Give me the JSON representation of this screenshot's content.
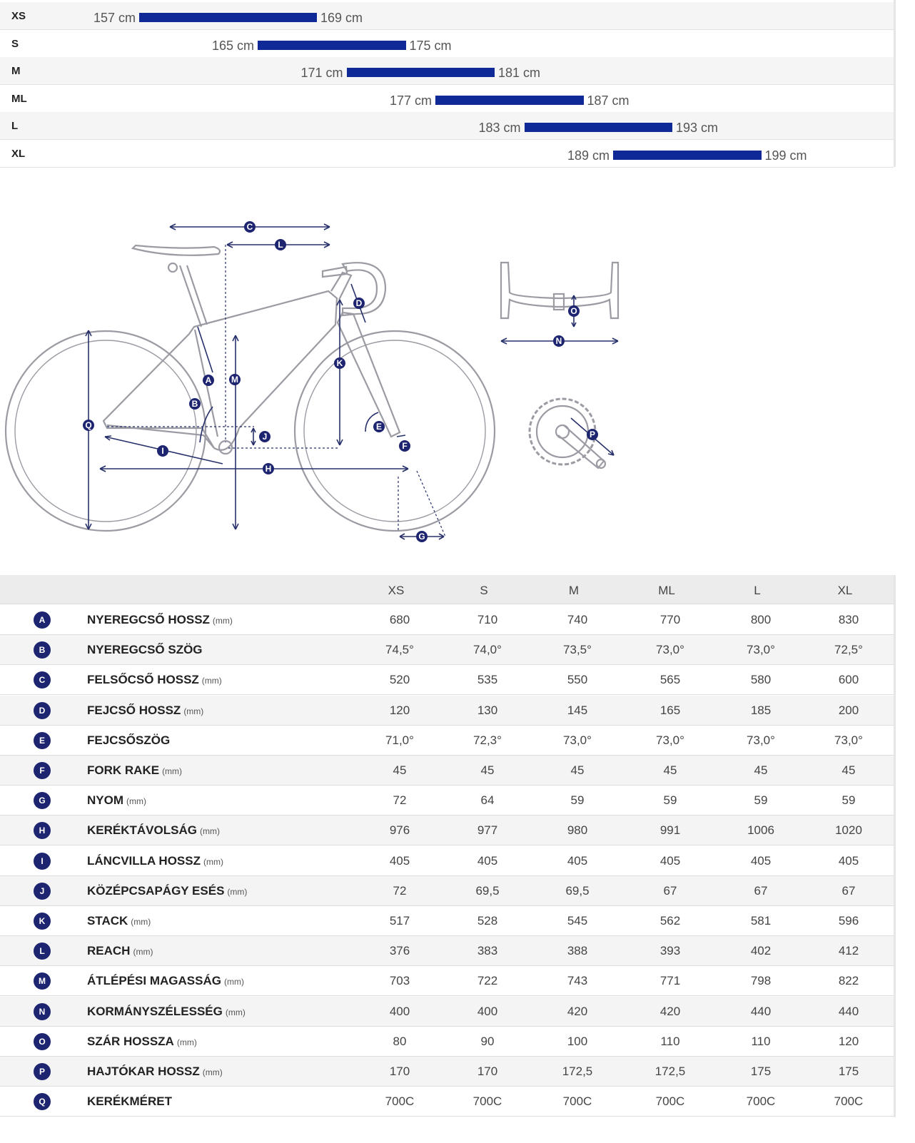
{
  "size_ranges": [
    {
      "size": "XS",
      "min": "157 cm",
      "max": "169 cm"
    },
    {
      "size": "S",
      "min": "165 cm",
      "max": "175 cm"
    },
    {
      "size": "M",
      "min": "171 cm",
      "max": "181 cm"
    },
    {
      "size": "ML",
      "min": "177 cm",
      "max": "187 cm"
    },
    {
      "size": "L",
      "min": "183 cm",
      "max": "193 cm"
    },
    {
      "size": "XL",
      "min": "189 cm",
      "max": "199 cm"
    }
  ],
  "diagram_letters": [
    "A",
    "B",
    "C",
    "D",
    "E",
    "F",
    "G",
    "H",
    "I",
    "J",
    "K",
    "L",
    "M",
    "N",
    "O",
    "P",
    "Q"
  ],
  "geometry": {
    "sizes": [
      "XS",
      "S",
      "M",
      "ML",
      "L",
      "XL"
    ],
    "rows": [
      {
        "letter": "A",
        "label": "NYEREGCSŐ HOSSZ",
        "unit": "(mm)",
        "values": [
          "680",
          "710",
          "740",
          "770",
          "800",
          "830"
        ]
      },
      {
        "letter": "B",
        "label": "NYEREGCSŐ SZÖG",
        "unit": "",
        "values": [
          "74,5°",
          "74,0°",
          "73,5°",
          "73,0°",
          "73,0°",
          "72,5°"
        ]
      },
      {
        "letter": "C",
        "label": "FELSŐCSŐ HOSSZ",
        "unit": "(mm)",
        "values": [
          "520",
          "535",
          "550",
          "565",
          "580",
          "600"
        ]
      },
      {
        "letter": "D",
        "label": "FEJCSŐ HOSSZ",
        "unit": "(mm)",
        "values": [
          "120",
          "130",
          "145",
          "165",
          "185",
          "200"
        ]
      },
      {
        "letter": "E",
        "label": "FEJCSŐSZÖG",
        "unit": "",
        "values": [
          "71,0°",
          "72,3°",
          "73,0°",
          "73,0°",
          "73,0°",
          "73,0°"
        ]
      },
      {
        "letter": "F",
        "label": "FORK RAKE",
        "unit": "(mm)",
        "values": [
          "45",
          "45",
          "45",
          "45",
          "45",
          "45"
        ]
      },
      {
        "letter": "G",
        "label": "NYOM",
        "unit": "(mm)",
        "values": [
          "72",
          "64",
          "59",
          "59",
          "59",
          "59"
        ]
      },
      {
        "letter": "H",
        "label": "KERÉKTÁVOLSÁG",
        "unit": "(mm)",
        "values": [
          "976",
          "977",
          "980",
          "991",
          "1006",
          "1020"
        ]
      },
      {
        "letter": "I",
        "label": "LÁNCVILLA HOSSZ",
        "unit": "(mm)",
        "values": [
          "405",
          "405",
          "405",
          "405",
          "405",
          "405"
        ]
      },
      {
        "letter": "J",
        "label": "KÖZÉPCSAPÁGY ESÉS",
        "unit": "(mm)",
        "values": [
          "72",
          "69,5",
          "69,5",
          "67",
          "67",
          "67"
        ]
      },
      {
        "letter": "K",
        "label": "STACK",
        "unit": "(mm)",
        "values": [
          "517",
          "528",
          "545",
          "562",
          "581",
          "596"
        ]
      },
      {
        "letter": "L",
        "label": "REACH",
        "unit": "(mm)",
        "values": [
          "376",
          "383",
          "388",
          "393",
          "402",
          "412"
        ]
      },
      {
        "letter": "M",
        "label": "ÁTLÉPÉSI MAGASSÁG",
        "unit": "(mm)",
        "values": [
          "703",
          "722",
          "743",
          "771",
          "798",
          "822"
        ]
      },
      {
        "letter": "N",
        "label": "KORMÁNYSZÉLESSÉG",
        "unit": "(mm)",
        "values": [
          "400",
          "400",
          "420",
          "420",
          "440",
          "440"
        ]
      },
      {
        "letter": "O",
        "label": "SZÁR HOSSZA",
        "unit": "(mm)",
        "values": [
          "80",
          "90",
          "100",
          "110",
          "110",
          "120"
        ]
      },
      {
        "letter": "P",
        "label": "HAJTÓKAR HOSSZ",
        "unit": "(mm)",
        "values": [
          "170",
          "170",
          "172,5",
          "172,5",
          "175",
          "175"
        ]
      },
      {
        "letter": "Q",
        "label": "KERÉKMÉRET",
        "unit": "",
        "values": [
          "700C",
          "700C",
          "700C",
          "700C",
          "700C",
          "700C"
        ]
      }
    ]
  }
}
